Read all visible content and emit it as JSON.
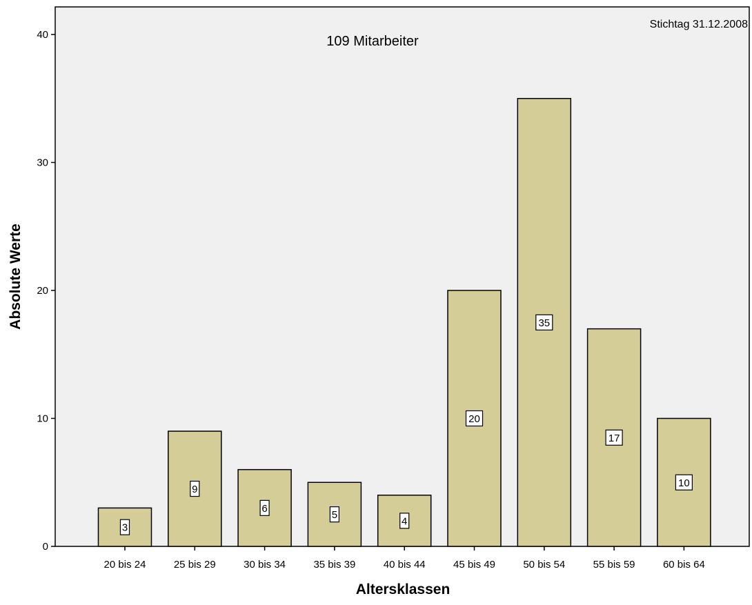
{
  "chart_data": {
    "type": "bar",
    "categories": [
      "20 bis 24",
      "25 bis 29",
      "30 bis 34",
      "35 bis 39",
      "40 bis 44",
      "45 bis 49",
      "50 bis 54",
      "55 bis 59",
      "60 bis 64"
    ],
    "values": [
      3,
      9,
      6,
      5,
      4,
      20,
      35,
      17,
      10
    ],
    "data_labels": [
      "3",
      "9",
      "6",
      "5",
      "4",
      "20",
      "35",
      "17",
      "10"
    ],
    "title": "",
    "annotations": {
      "center": "109 Mitarbeiter",
      "corner": "Stichtag 31.12.2008"
    },
    "xlabel": "Altersklassen",
    "ylabel": "Absolute Werte",
    "ylim": [
      0,
      40
    ],
    "yticks": [
      0,
      10,
      20,
      30,
      40
    ],
    "grid": false,
    "legend": "none",
    "colors": {
      "bar_fill": "#d4cd97",
      "plot_background": "#f0f0f0",
      "outline": "#000000"
    }
  }
}
